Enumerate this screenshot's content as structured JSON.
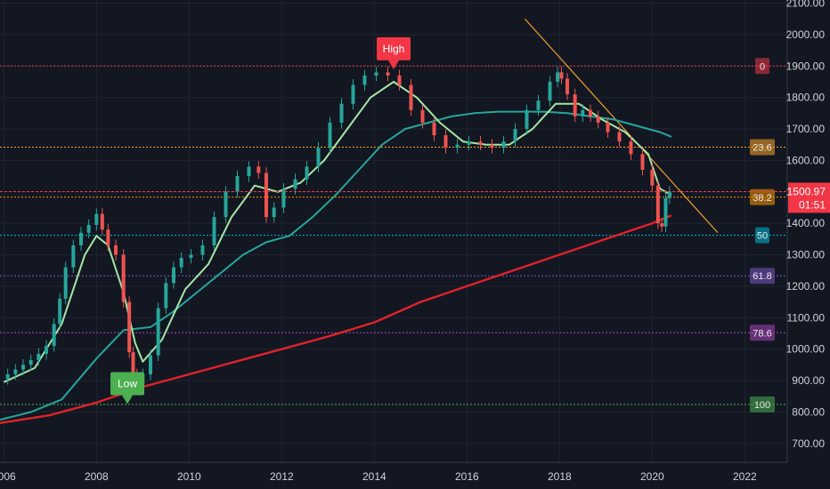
{
  "chart_data": {
    "type": "candlestick",
    "timeframe": "monthly",
    "x_axis": {
      "range": [
        "2005-12",
        "2022-12"
      ],
      "tick_labels": [
        "2006",
        "2008",
        "2010",
        "2012",
        "2014",
        "2016",
        "2018",
        "2020",
        "2022"
      ]
    },
    "y_axis": {
      "range": [
        640,
        2110
      ],
      "position": "right",
      "tick_labels": [
        "700.00",
        "800.00",
        "900.00",
        "1000.00",
        "1100.00",
        "1200.00",
        "1300.00",
        "1400.00",
        "1500.00",
        "1600.00",
        "1700.00",
        "1800.00",
        "1900.00",
        "2000.00",
        "2100.00"
      ]
    },
    "last_price": {
      "value": 1500.97,
      "label": "1500.97",
      "countdown": "01:51",
      "color": "#f23645"
    },
    "close_series": [
      [
        "2006-01",
        905
      ],
      [
        "2006-03",
        920
      ],
      [
        "2006-05",
        935
      ],
      [
        "2006-07",
        950
      ],
      [
        "2006-09",
        965
      ],
      [
        "2006-11",
        985
      ],
      [
        "2007-01",
        1010
      ],
      [
        "2007-03",
        1080
      ],
      [
        "2007-04",
        1160
      ],
      [
        "2007-06",
        1260
      ],
      [
        "2007-08",
        1330
      ],
      [
        "2007-10",
        1370
      ],
      [
        "2007-12",
        1395
      ],
      [
        "2008-02",
        1430
      ],
      [
        "2008-03",
        1380
      ],
      [
        "2008-05",
        1330
      ],
      [
        "2008-07",
        1300
      ],
      [
        "2008-09",
        1150
      ],
      [
        "2008-10",
        990
      ],
      [
        "2008-11",
        920
      ],
      [
        "2008-12",
        890
      ],
      [
        "2009-02",
        920
      ],
      [
        "2009-04",
        980
      ],
      [
        "2009-06",
        1130
      ],
      [
        "2009-08",
        1210
      ],
      [
        "2009-10",
        1260
      ],
      [
        "2009-12",
        1290
      ],
      [
        "2010-03",
        1300
      ],
      [
        "2010-06",
        1330
      ],
      [
        "2010-09",
        1420
      ],
      [
        "2010-12",
        1500
      ],
      [
        "2011-03",
        1550
      ],
      [
        "2011-06",
        1580
      ],
      [
        "2011-08",
        1560
      ],
      [
        "2011-10",
        1420
      ],
      [
        "2011-12",
        1450
      ],
      [
        "2012-03",
        1510
      ],
      [
        "2012-06",
        1540
      ],
      [
        "2012-09",
        1580
      ],
      [
        "2012-12",
        1640
      ],
      [
        "2013-03",
        1720
      ],
      [
        "2013-06",
        1780
      ],
      [
        "2013-09",
        1840
      ],
      [
        "2013-12",
        1870
      ],
      [
        "2014-03",
        1880
      ],
      [
        "2014-06",
        1870
      ],
      [
        "2014-09",
        1840
      ],
      [
        "2014-12",
        1760
      ],
      [
        "2015-03",
        1720
      ],
      [
        "2015-06",
        1680
      ],
      [
        "2015-09",
        1640
      ],
      [
        "2015-12",
        1650
      ],
      [
        "2016-03",
        1660
      ],
      [
        "2016-06",
        1650
      ],
      [
        "2016-09",
        1640
      ],
      [
        "2016-12",
        1660
      ],
      [
        "2017-03",
        1700
      ],
      [
        "2017-06",
        1760
      ],
      [
        "2017-09",
        1790
      ],
      [
        "2017-12",
        1850
      ],
      [
        "2018-01",
        1880
      ],
      [
        "2018-02",
        1860
      ],
      [
        "2018-04",
        1810
      ],
      [
        "2018-06",
        1740
      ],
      [
        "2018-08",
        1760
      ],
      [
        "2018-10",
        1740
      ],
      [
        "2018-12",
        1720
      ],
      [
        "2019-03",
        1690
      ],
      [
        "2019-06",
        1660
      ],
      [
        "2019-09",
        1620
      ],
      [
        "2019-12",
        1570
      ],
      [
        "2020-02",
        1520
      ],
      [
        "2020-03",
        1400
      ],
      [
        "2020-04",
        1390
      ],
      [
        "2020-05",
        1480
      ],
      [
        "2020-06",
        1501
      ]
    ],
    "fast_ema": {
      "color": "#a5e6a5",
      "points": [
        [
          "2006-01",
          895
        ],
        [
          "2006-09",
          940
        ],
        [
          "2007-04",
          1080
        ],
        [
          "2007-10",
          1300
        ],
        [
          "2008-01",
          1360
        ],
        [
          "2008-04",
          1330
        ],
        [
          "2008-08",
          1180
        ],
        [
          "2008-11",
          1020
        ],
        [
          "2009-01",
          960
        ],
        [
          "2009-06",
          1030
        ],
        [
          "2009-12",
          1190
        ],
        [
          "2010-06",
          1270
        ],
        [
          "2010-12",
          1420
        ],
        [
          "2011-06",
          1520
        ],
        [
          "2011-12",
          1500
        ],
        [
          "2012-06",
          1530
        ],
        [
          "2012-12",
          1600
        ],
        [
          "2013-06",
          1700
        ],
        [
          "2013-12",
          1800
        ],
        [
          "2014-06",
          1850
        ],
        [
          "2014-12",
          1800
        ],
        [
          "2015-06",
          1720
        ],
        [
          "2015-12",
          1660
        ],
        [
          "2016-06",
          1650
        ],
        [
          "2016-12",
          1650
        ],
        [
          "2017-06",
          1700
        ],
        [
          "2017-12",
          1780
        ],
        [
          "2018-06",
          1780
        ],
        [
          "2018-12",
          1730
        ],
        [
          "2019-06",
          1690
        ],
        [
          "2019-12",
          1620
        ],
        [
          "2020-03",
          1510
        ],
        [
          "2020-06",
          1490
        ]
      ]
    },
    "mid_ema": {
      "color": "#26a69a",
      "points": [
        [
          "2005-12",
          775
        ],
        [
          "2006-08",
          800
        ],
        [
          "2007-04",
          840
        ],
        [
          "2008-01",
          970
        ],
        [
          "2008-08",
          1060
        ],
        [
          "2009-03",
          1070
        ],
        [
          "2009-09",
          1120
        ],
        [
          "2010-03",
          1180
        ],
        [
          "2010-09",
          1240
        ],
        [
          "2011-03",
          1300
        ],
        [
          "2011-09",
          1340
        ],
        [
          "2012-03",
          1360
        ],
        [
          "2012-09",
          1420
        ],
        [
          "2013-03",
          1490
        ],
        [
          "2013-09",
          1570
        ],
        [
          "2014-03",
          1650
        ],
        [
          "2014-09",
          1700
        ],
        [
          "2015-03",
          1720
        ],
        [
          "2015-09",
          1740
        ],
        [
          "2016-03",
          1750
        ],
        [
          "2016-09",
          1755
        ],
        [
          "2017-03",
          1755
        ],
        [
          "2017-09",
          1755
        ],
        [
          "2018-03",
          1750
        ],
        [
          "2018-09",
          1740
        ],
        [
          "2019-03",
          1730
        ],
        [
          "2019-09",
          1710
        ],
        [
          "2020-03",
          1690
        ],
        [
          "2020-06",
          1675
        ]
      ]
    },
    "slow_ema": {
      "color": "#e0222a",
      "points": [
        [
          "2005-12",
          765
        ],
        [
          "2007-01",
          790
        ],
        [
          "2008-01",
          830
        ],
        [
          "2009-01",
          880
        ],
        [
          "2010-01",
          920
        ],
        [
          "2011-01",
          960
        ],
        [
          "2012-01",
          1000
        ],
        [
          "2013-01",
          1040
        ],
        [
          "2014-01",
          1085
        ],
        [
          "2015-01",
          1150
        ],
        [
          "2016-01",
          1200
        ],
        [
          "2017-01",
          1250
        ],
        [
          "2018-01",
          1300
        ],
        [
          "2019-01",
          1350
        ],
        [
          "2020-01",
          1400
        ],
        [
          "2020-06",
          1425
        ]
      ]
    },
    "fibonacci_levels": [
      {
        "label": "0",
        "value": 1900,
        "color": "#f23645"
      },
      {
        "label": "23.6",
        "value": 1642,
        "color": "#ffa726"
      },
      {
        "label": "38.2",
        "value": 1483,
        "color": "#ff9800"
      },
      {
        "label": "50",
        "value": 1362,
        "color": "#00bcd4"
      },
      {
        "label": "61.8",
        "value": 1233,
        "color": "#7e57c2"
      },
      {
        "label": "78.6",
        "value": 1052,
        "color": "#ab47bc"
      },
      {
        "label": "100",
        "value": 824,
        "color": "#4caf50"
      }
    ],
    "trendline": {
      "color": "#f0a030",
      "from": [
        "2017-04",
        2050
      ],
      "to": [
        "2021-06",
        1370
      ]
    },
    "annotations": [
      {
        "text": "High",
        "date": "2014-06",
        "value": 1890,
        "color": "#f23645",
        "pointer": "down"
      },
      {
        "text": "Low",
        "date": "2008-09",
        "value": 825,
        "color": "#4caf50",
        "pointer": "down"
      }
    ],
    "grid": true
  }
}
